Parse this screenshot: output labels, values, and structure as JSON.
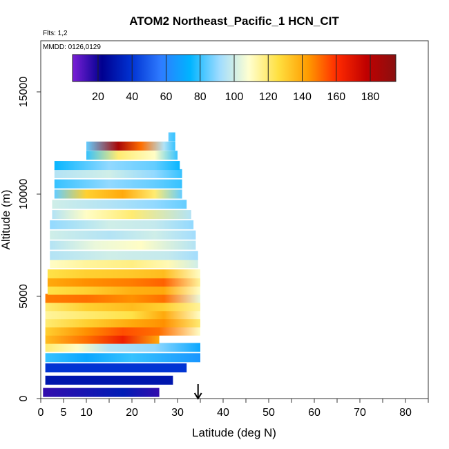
{
  "chart_data": {
    "type": "heatmap",
    "title": "ATOM2 Northeast_Pacific_1 HCN_CIT",
    "flights_label": "Flts: 1,2",
    "mmdd_label": "MMDD: 0126,0129",
    "xlabel": "Latitude (deg N)",
    "ylabel": "Altitude (m)",
    "xlim": [
      0,
      85
    ],
    "ylim": [
      0,
      17500
    ],
    "x_ticks": [
      0,
      5,
      10,
      20,
      30,
      40,
      50,
      60,
      70,
      80
    ],
    "y_ticks": [
      0,
      5000,
      10000,
      15000
    ],
    "colorbar": {
      "min": 5,
      "max": 195,
      "ticks": [
        20,
        40,
        60,
        80,
        100,
        120,
        140,
        160,
        180
      ],
      "colors": [
        "#7a1fd6",
        "#00008f",
        "#0032d2",
        "#2e7bff",
        "#00b4ff",
        "#9fdcff",
        "#ffffd0",
        "#ffe040",
        "#ff9c00",
        "#ff2a00",
        "#c00000",
        "#8a1010"
      ]
    },
    "marker": {
      "x": 34.5,
      "label": "arrow"
    },
    "bands": [
      {
        "alt": 300,
        "x0": 0.5,
        "x1": 26,
        "segs": [
          [
            0.5,
            15
          ],
          [
            18,
            32
          ],
          [
            26,
            15
          ]
        ]
      },
      {
        "alt": 900,
        "x0": 1,
        "x1": 29,
        "segs": [
          [
            1,
            30
          ],
          [
            29,
            30
          ]
        ]
      },
      {
        "alt": 1500,
        "x0": 1,
        "x1": 32,
        "segs": [
          [
            1,
            40
          ],
          [
            32,
            40
          ]
        ]
      },
      {
        "alt": 2000,
        "x0": 1,
        "x1": 35,
        "segs": [
          [
            1,
            80
          ],
          [
            10,
            70
          ],
          [
            20,
            80
          ],
          [
            35,
            65
          ]
        ]
      },
      {
        "alt": 2500,
        "x0": 1,
        "x1": 35,
        "segs": [
          [
            1,
            120
          ],
          [
            8,
            110
          ],
          [
            15,
            95
          ],
          [
            25,
            90
          ],
          [
            35,
            70
          ]
        ]
      },
      {
        "alt": 2900,
        "x0": 1,
        "x1": 26,
        "segs": [
          [
            1,
            135
          ],
          [
            10,
            150
          ],
          [
            18,
            165
          ],
          [
            26,
            140
          ]
        ]
      },
      {
        "alt": 3300,
        "x0": 1,
        "x1": 35,
        "segs": [
          [
            1,
            130
          ],
          [
            10,
            145
          ],
          [
            18,
            155
          ],
          [
            26,
            150
          ],
          [
            35,
            110
          ]
        ]
      },
      {
        "alt": 3700,
        "x0": 1,
        "x1": 35,
        "segs": [
          [
            1,
            120
          ],
          [
            10,
            130
          ],
          [
            20,
            140
          ],
          [
            27,
            145
          ],
          [
            35,
            120
          ]
        ]
      },
      {
        "alt": 4100,
        "x0": 1,
        "x1": 35,
        "segs": [
          [
            1,
            115
          ],
          [
            10,
            120
          ],
          [
            20,
            125
          ],
          [
            27,
            140
          ],
          [
            35,
            110
          ]
        ]
      },
      {
        "alt": 4500,
        "x0": 1,
        "x1": 35,
        "segs": [
          [
            1,
            120
          ],
          [
            10,
            130
          ],
          [
            20,
            135
          ],
          [
            27,
            130
          ],
          [
            35,
            115
          ]
        ]
      },
      {
        "alt": 4900,
        "x0": 1,
        "x1": 35,
        "segs": [
          [
            1,
            148
          ],
          [
            10,
            150
          ],
          [
            20,
            145
          ],
          [
            27,
            150
          ],
          [
            35,
            105
          ]
        ]
      },
      {
        "alt": 5300,
        "x0": 1.5,
        "x1": 35,
        "segs": [
          [
            1.5,
            125
          ],
          [
            10,
            130
          ],
          [
            20,
            138
          ],
          [
            27,
            140
          ],
          [
            35,
            110
          ]
        ]
      },
      {
        "alt": 5700,
        "x0": 1.5,
        "x1": 35,
        "segs": [
          [
            1.5,
            140
          ],
          [
            10,
            145
          ],
          [
            20,
            148
          ],
          [
            27,
            152
          ],
          [
            35,
            115
          ]
        ]
      },
      {
        "alt": 6100,
        "x0": 1.5,
        "x1": 35,
        "segs": [
          [
            1.5,
            125
          ],
          [
            10,
            130
          ],
          [
            20,
            132
          ],
          [
            27,
            135
          ],
          [
            35,
            110
          ]
        ]
      },
      {
        "alt": 6600,
        "x0": 2,
        "x1": 34.5,
        "segs": [
          [
            2,
            110
          ],
          [
            10,
            115
          ],
          [
            20,
            118
          ],
          [
            28,
            112
          ],
          [
            34.5,
            100
          ]
        ]
      },
      {
        "alt": 7000,
        "x0": 2,
        "x1": 34.5,
        "segs": [
          [
            2,
            95
          ],
          [
            15,
            100
          ],
          [
            28,
            98
          ],
          [
            34.5,
            92
          ]
        ]
      },
      {
        "alt": 7500,
        "x0": 2,
        "x1": 34,
        "segs": [
          [
            2,
            95
          ],
          [
            12,
            105
          ],
          [
            22,
            110
          ],
          [
            34,
            95
          ]
        ]
      },
      {
        "alt": 8000,
        "x0": 2,
        "x1": 34,
        "segs": [
          [
            2,
            100
          ],
          [
            15,
            95
          ],
          [
            25,
            100
          ],
          [
            34,
            92
          ]
        ]
      },
      {
        "alt": 8500,
        "x0": 2,
        "x1": 33.5,
        "segs": [
          [
            2,
            90
          ],
          [
            15,
            100
          ],
          [
            25,
            98
          ],
          [
            33.5,
            90
          ]
        ]
      },
      {
        "alt": 9000,
        "x0": 2.5,
        "x1": 33,
        "segs": [
          [
            2.5,
            95
          ],
          [
            10,
            110
          ],
          [
            20,
            120
          ],
          [
            33,
            95
          ]
        ]
      },
      {
        "alt": 9500,
        "x0": 2.5,
        "x1": 32,
        "segs": [
          [
            2.5,
            100
          ],
          [
            15,
            95
          ],
          [
            25,
            90
          ],
          [
            32,
            85
          ]
        ]
      },
      {
        "alt": 10000,
        "x0": 3,
        "x1": 31,
        "segs": [
          [
            3,
            85
          ],
          [
            10,
            130
          ],
          [
            18,
            140
          ],
          [
            25,
            120
          ],
          [
            31,
            85
          ]
        ]
      },
      {
        "alt": 10500,
        "x0": 3,
        "x1": 31,
        "segs": [
          [
            3,
            80
          ],
          [
            15,
            90
          ],
          [
            25,
            85
          ],
          [
            31,
            80
          ]
        ]
      },
      {
        "alt": 11000,
        "x0": 3,
        "x1": 31,
        "segs": [
          [
            3,
            95
          ],
          [
            15,
            100
          ],
          [
            25,
            90
          ],
          [
            31,
            80
          ]
        ]
      },
      {
        "alt": 11400,
        "x0": 3,
        "x1": 30.5,
        "segs": [
          [
            3,
            75
          ],
          [
            15,
            90
          ],
          [
            25,
            85
          ],
          [
            30.5,
            75
          ]
        ]
      },
      {
        "alt": 11900,
        "x0": 10,
        "x1": 30,
        "segs": [
          [
            10,
            80
          ],
          [
            17,
            120
          ],
          [
            25,
            110
          ],
          [
            30,
            80
          ]
        ]
      },
      {
        "alt": 12350,
        "x0": 10,
        "x1": 29.5,
        "segs": [
          [
            10,
            85
          ],
          [
            17,
            185
          ],
          [
            22,
            150
          ],
          [
            27,
            95
          ],
          [
            29.5,
            80
          ]
        ]
      },
      {
        "alt": 12800,
        "x0": 28,
        "x1": 29.5,
        "segs": [
          [
            28,
            85
          ],
          [
            29.5,
            80
          ]
        ]
      }
    ]
  }
}
